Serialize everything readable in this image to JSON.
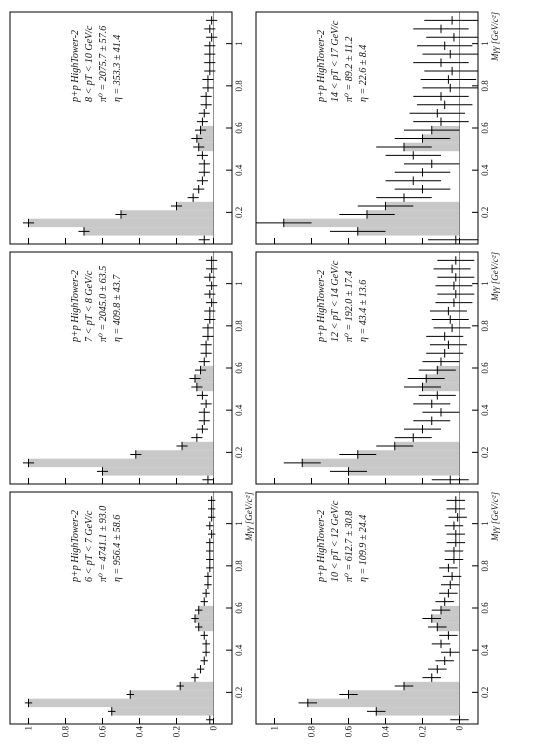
{
  "chart_data": [
    {
      "type": "errorbar",
      "title": "p+p HighTower-2",
      "subtitle": "6 < pT < 7 GeV/c",
      "annotations": [
        "π⁰ = 4741.1 ± 93.0",
        "η = 956.4 ± 58.6"
      ],
      "xlabel": "Mγγ [GeV/c²]",
      "ytick_labels": true,
      "x": [
        0.07,
        0.11,
        0.15,
        0.19,
        0.23,
        0.27,
        0.31,
        0.35,
        0.39,
        0.43,
        0.47,
        0.51,
        0.55,
        0.59,
        0.63,
        0.67,
        0.71,
        0.75,
        0.79,
        0.83,
        0.87,
        0.91,
        0.95,
        0.99,
        1.03,
        1.07,
        1.11
      ],
      "values": [
        0.02,
        0.55,
        1.0,
        0.45,
        0.18,
        0.1,
        0.07,
        0.05,
        0.04,
        0.04,
        0.05,
        0.08,
        0.1,
        0.08,
        0.05,
        0.04,
        0.03,
        0.03,
        0.02,
        0.02,
        0.02,
        0.02,
        0.01,
        0.02,
        0.01,
        0.01,
        0.01
      ],
      "errors": [
        0.02,
        0.02,
        0.02,
        0.02,
        0.02,
        0.02,
        0.02,
        0.02,
        0.02,
        0.02,
        0.02,
        0.02,
        0.02,
        0.02,
        0.02,
        0.02,
        0.02,
        0.02,
        0.02,
        0.02,
        0.02,
        0.02,
        0.02,
        0.02,
        0.02,
        0.02,
        0.02
      ],
      "shade": [
        [
          0.09,
          0.25
        ],
        [
          0.49,
          0.61
        ]
      ],
      "xlim": [
        0.05,
        1.15
      ],
      "ylim": [
        -0.1,
        1.1
      ],
      "xticks": [
        0.2,
        0.4,
        0.6,
        0.8,
        1
      ],
      "yticks": [
        0,
        0.2,
        0.4,
        0.6,
        0.8,
        1
      ]
    },
    {
      "type": "errorbar",
      "title": "p+p HighTower-2",
      "subtitle": "7 < pT < 8 GeV/c",
      "annotations": [
        "π⁰ = 2045.0 ± 63.5",
        "η = 409.8 ± 43.7"
      ],
      "ytick_labels": false,
      "x": [
        0.07,
        0.11,
        0.15,
        0.19,
        0.23,
        0.27,
        0.31,
        0.35,
        0.39,
        0.43,
        0.47,
        0.51,
        0.55,
        0.59,
        0.63,
        0.67,
        0.71,
        0.75,
        0.79,
        0.83,
        0.87,
        0.91,
        0.95,
        0.99,
        1.03,
        1.07,
        1.11
      ],
      "values": [
        0.03,
        0.6,
        1.0,
        0.42,
        0.17,
        0.09,
        0.06,
        0.05,
        0.05,
        0.04,
        0.06,
        0.09,
        0.1,
        0.07,
        0.05,
        0.04,
        0.04,
        0.03,
        0.03,
        0.02,
        0.02,
        0.01,
        0.02,
        0.01,
        0.02,
        0.01,
        0.01
      ],
      "errors": [
        0.03,
        0.03,
        0.03,
        0.03,
        0.03,
        0.03,
        0.03,
        0.03,
        0.03,
        0.03,
        0.03,
        0.03,
        0.03,
        0.03,
        0.03,
        0.03,
        0.03,
        0.03,
        0.03,
        0.03,
        0.03,
        0.03,
        0.03,
        0.03,
        0.03,
        0.03,
        0.03
      ],
      "shade": [
        [
          0.09,
          0.25
        ],
        [
          0.49,
          0.61
        ]
      ],
      "xlim": [
        0.05,
        1.15
      ],
      "ylim": [
        -0.1,
        1.1
      ],
      "xticks": [
        0.2,
        0.4,
        0.6,
        0.8,
        1
      ],
      "yticks": [
        0,
        0.2,
        0.4,
        0.6,
        0.8,
        1
      ]
    },
    {
      "type": "errorbar",
      "title": "p+p HighTower-2",
      "subtitle": "8 < pT < 10 GeV/c",
      "annotations": [
        "π⁰ = 2075.7 ± 57.6",
        "η = 353.3 ± 41.4"
      ],
      "ytick_labels": false,
      "x": [
        0.07,
        0.11,
        0.15,
        0.19,
        0.23,
        0.27,
        0.31,
        0.35,
        0.39,
        0.43,
        0.47,
        0.51,
        0.55,
        0.59,
        0.63,
        0.67,
        0.71,
        0.75,
        0.79,
        0.83,
        0.87,
        0.91,
        0.95,
        0.99,
        1.03,
        1.07,
        1.11
      ],
      "values": [
        0.05,
        0.7,
        1.0,
        0.5,
        0.2,
        0.11,
        0.08,
        0.06,
        0.05,
        0.05,
        0.06,
        0.08,
        0.09,
        0.07,
        0.06,
        0.05,
        0.04,
        0.04,
        0.03,
        0.03,
        0.02,
        0.02,
        0.02,
        0.02,
        0.01,
        0.02,
        0.01
      ],
      "errors": [
        0.03,
        0.03,
        0.03,
        0.03,
        0.03,
        0.03,
        0.03,
        0.03,
        0.03,
        0.03,
        0.03,
        0.03,
        0.03,
        0.03,
        0.03,
        0.03,
        0.03,
        0.03,
        0.03,
        0.03,
        0.03,
        0.03,
        0.03,
        0.03,
        0.03,
        0.03,
        0.03
      ],
      "shade": [
        [
          0.09,
          0.25
        ],
        [
          0.49,
          0.61
        ]
      ],
      "xlim": [
        0.05,
        1.15
      ],
      "ylim": [
        -0.1,
        1.1
      ],
      "xticks": [
        0.2,
        0.4,
        0.6,
        0.8,
        1
      ],
      "yticks": [
        0,
        0.2,
        0.4,
        0.6,
        0.8,
        1
      ]
    },
    {
      "type": "errorbar",
      "title": "p+p HighTower-2",
      "subtitle": "10 < pT < 12 GeV/c",
      "annotations": [
        "π⁰ = 612.7 ± 30.8",
        "η = 109.9 ± 24.4"
      ],
      "xlabel": "Mγγ [GeV/c²]",
      "ytick_labels": true,
      "x": [
        0.07,
        0.11,
        0.15,
        0.19,
        0.23,
        0.27,
        0.31,
        0.35,
        0.39,
        0.43,
        0.47,
        0.51,
        0.55,
        0.59,
        0.63,
        0.67,
        0.71,
        0.75,
        0.79,
        0.83,
        0.87,
        0.91,
        0.95,
        0.99,
        1.03,
        1.07,
        1.11
      ],
      "values": [
        0.0,
        0.45,
        0.82,
        0.6,
        0.3,
        0.15,
        0.12,
        0.08,
        0.05,
        0.1,
        0.06,
        0.12,
        0.15,
        0.1,
        0.08,
        0.06,
        0.05,
        0.04,
        0.06,
        0.03,
        0.03,
        0.02,
        0.02,
        0.03,
        0.01,
        0.02,
        0.02
      ],
      "errors": [
        0.05,
        0.05,
        0.05,
        0.05,
        0.05,
        0.05,
        0.05,
        0.05,
        0.05,
        0.05,
        0.05,
        0.05,
        0.05,
        0.05,
        0.05,
        0.05,
        0.05,
        0.05,
        0.05,
        0.05,
        0.05,
        0.05,
        0.05,
        0.05,
        0.05,
        0.05,
        0.05
      ],
      "shade": [
        [
          0.09,
          0.25
        ],
        [
          0.49,
          0.61
        ]
      ],
      "xlim": [
        0.05,
        1.15
      ],
      "ylim": [
        -0.1,
        1.1
      ],
      "xticks": [
        0.2,
        0.4,
        0.6,
        0.8,
        1
      ],
      "yticks": [
        0,
        0.2,
        0.4,
        0.6,
        0.8,
        1
      ]
    },
    {
      "type": "errorbar",
      "title": "p+p HighTower-2",
      "subtitle": "12 < pT < 14 GeV/c",
      "annotations": [
        "π⁰ = 192.0 ± 17.4",
        "η = 43.4 ± 13.6"
      ],
      "xlabel": "Mγγ [GeV/c²]",
      "ytick_labels": false,
      "x": [
        0.07,
        0.11,
        0.15,
        0.19,
        0.23,
        0.27,
        0.31,
        0.35,
        0.39,
        0.43,
        0.47,
        0.51,
        0.55,
        0.59,
        0.63,
        0.67,
        0.71,
        0.75,
        0.79,
        0.83,
        0.87,
        0.91,
        0.95,
        0.99,
        1.03,
        1.07,
        1.11
      ],
      "values": [
        0.05,
        0.6,
        0.85,
        0.55,
        0.35,
        0.25,
        0.2,
        0.15,
        0.1,
        0.15,
        0.12,
        0.2,
        0.18,
        0.12,
        0.1,
        0.08,
        0.06,
        0.08,
        0.04,
        0.05,
        0.06,
        0.03,
        0.02,
        0.03,
        0.02,
        0.04,
        0.02
      ],
      "errors": [
        0.1,
        0.1,
        0.1,
        0.1,
        0.1,
        0.1,
        0.1,
        0.1,
        0.1,
        0.1,
        0.1,
        0.1,
        0.1,
        0.1,
        0.1,
        0.1,
        0.1,
        0.1,
        0.1,
        0.1,
        0.1,
        0.1,
        0.1,
        0.1,
        0.1,
        0.1,
        0.1
      ],
      "shade": [
        [
          0.09,
          0.25
        ],
        [
          0.49,
          0.61
        ]
      ],
      "xlim": [
        0.05,
        1.15
      ],
      "ylim": [
        -0.1,
        1.1
      ],
      "xticks": [
        0.2,
        0.4,
        0.6,
        0.8,
        1
      ],
      "yticks": [
        0,
        0.2,
        0.4,
        0.6,
        0.8,
        1
      ]
    },
    {
      "type": "errorbar",
      "title": "p+p HighTower-2",
      "subtitle": "14 < pT < 17 GeV/c",
      "annotations": [
        "π⁰ = 89.2 ± 11.2",
        "η = 22.6 ± 8.4"
      ],
      "xlabel": "Mγγ [GeV/c²]",
      "ytick_labels": false,
      "x": [
        0.07,
        0.11,
        0.15,
        0.19,
        0.23,
        0.27,
        0.31,
        0.35,
        0.39,
        0.43,
        0.47,
        0.51,
        0.55,
        0.59,
        0.63,
        0.67,
        0.71,
        0.75,
        0.79,
        0.83,
        0.87,
        0.91,
        0.95,
        0.99,
        1.03,
        1.07,
        1.11
      ],
      "values": [
        0.02,
        0.55,
        0.95,
        0.5,
        0.4,
        0.3,
        0.2,
        0.25,
        0.2,
        0.15,
        0.25,
        0.3,
        0.2,
        0.15,
        0.1,
        0.12,
        0.08,
        0.1,
        0.05,
        0.06,
        0.04,
        0.1,
        0.05,
        0.08,
        0.03,
        0.1,
        0.04
      ],
      "errors": [
        0.15,
        0.15,
        0.15,
        0.15,
        0.15,
        0.15,
        0.15,
        0.15,
        0.15,
        0.15,
        0.15,
        0.15,
        0.15,
        0.15,
        0.15,
        0.15,
        0.15,
        0.15,
        0.15,
        0.15,
        0.15,
        0.15,
        0.15,
        0.15,
        0.15,
        0.15,
        0.15
      ],
      "shade": [
        [
          0.09,
          0.25
        ],
        [
          0.49,
          0.61
        ]
      ],
      "xlim": [
        0.05,
        1.15
      ],
      "ylim": [
        -0.1,
        1.1
      ],
      "xticks": [
        0.2,
        0.4,
        0.6,
        0.8,
        1
      ],
      "yticks": [
        0,
        0.2,
        0.4,
        0.6,
        0.8,
        1
      ]
    }
  ]
}
